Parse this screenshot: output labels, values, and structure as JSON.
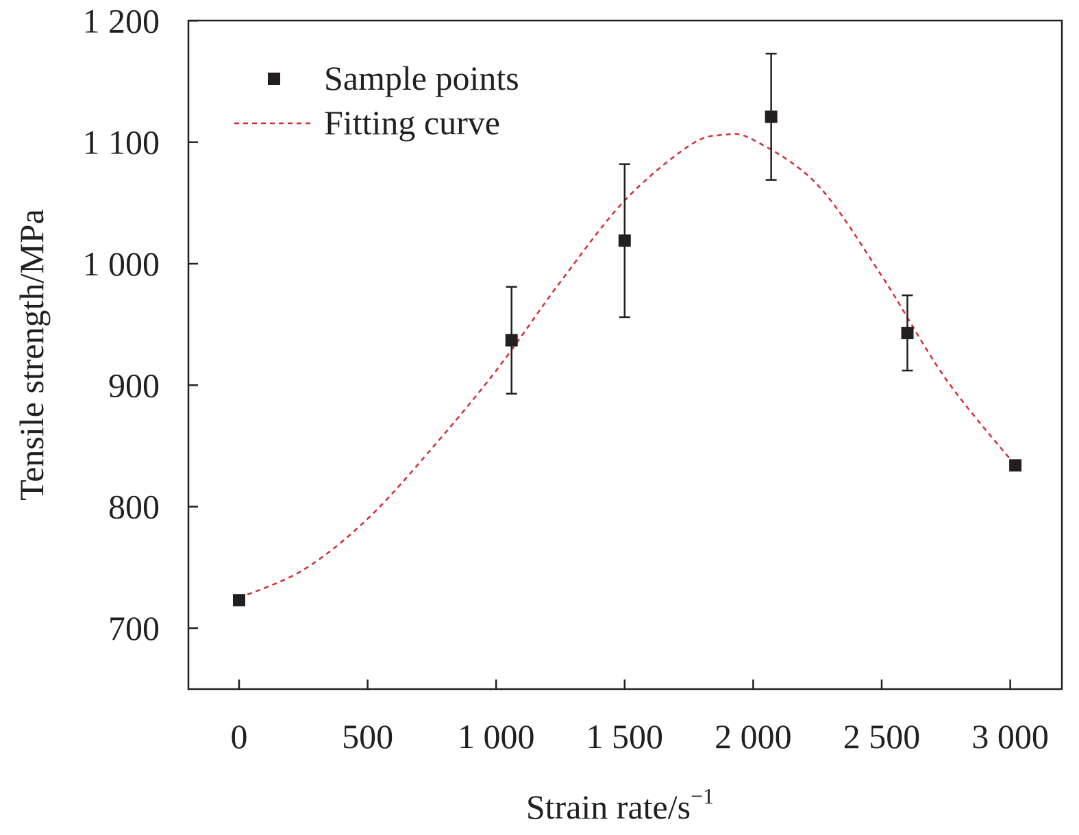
{
  "chart_data": {
    "type": "scatter",
    "xlabel": "Strain rate/s",
    "xlabel_superscript": "−1",
    "ylabel": "Tensile strength/MPa",
    "xlim": [
      -200,
      3200
    ],
    "ylim": [
      650,
      1200
    ],
    "xticks": [
      0,
      500,
      1000,
      1500,
      2000,
      2500,
      3000
    ],
    "xtick_labels": [
      "0",
      "500",
      "1 000",
      "1 500",
      "2 000",
      "2 500",
      "3 000"
    ],
    "yticks": [
      700,
      800,
      900,
      1000,
      1100,
      1200
    ],
    "ytick_labels": [
      "700",
      "800",
      "900",
      "1 000",
      "1 100",
      "1 200"
    ],
    "grid": false,
    "legend_position": "top-left",
    "series": [
      {
        "name": "Sample points",
        "marker": "square",
        "color": "#231f20",
        "points": [
          {
            "x": 0,
            "y": 723,
            "err": null
          },
          {
            "x": 1060,
            "y": 937,
            "err": 44
          },
          {
            "x": 1500,
            "y": 1019,
            "err": 63
          },
          {
            "x": 2070,
            "y": 1121,
            "err": 52
          },
          {
            "x": 2600,
            "y": 943,
            "err": 31
          },
          {
            "x": 3020,
            "y": 834,
            "err": null
          }
        ]
      },
      {
        "name": "Fitting curve",
        "style": "dashed",
        "color": "#d62a32",
        "points": [
          {
            "x": 0,
            "y": 725
          },
          {
            "x": 250,
            "y": 748
          },
          {
            "x": 500,
            "y": 790
          },
          {
            "x": 750,
            "y": 848
          },
          {
            "x": 1000,
            "y": 912
          },
          {
            "x": 1250,
            "y": 985
          },
          {
            "x": 1500,
            "y": 1052
          },
          {
            "x": 1750,
            "y": 1097
          },
          {
            "x": 1880,
            "y": 1106
          },
          {
            "x": 2000,
            "y": 1102
          },
          {
            "x": 2250,
            "y": 1065
          },
          {
            "x": 2500,
            "y": 990
          },
          {
            "x": 2750,
            "y": 905
          },
          {
            "x": 3020,
            "y": 834
          }
        ]
      }
    ]
  }
}
